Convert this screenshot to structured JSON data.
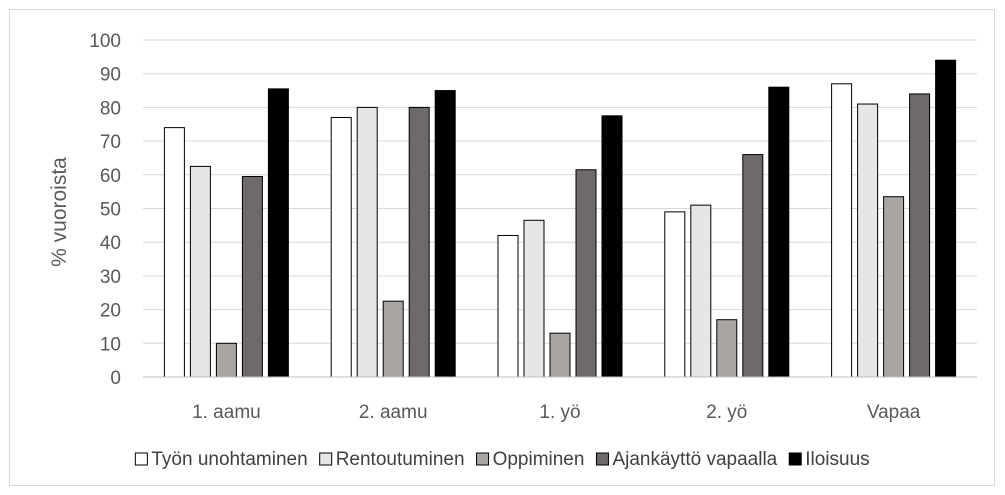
{
  "chart_data": {
    "type": "bar",
    "title": "",
    "xlabel": "",
    "ylabel": "% vuoroista",
    "ylim": [
      0,
      100
    ],
    "yticks": [
      0,
      10,
      20,
      30,
      40,
      50,
      60,
      70,
      80,
      90,
      100
    ],
    "grid": true,
    "legend_position": "bottom",
    "categories": [
      "1. aamu",
      "2. aamu",
      "1. yö",
      "2. yö",
      "Vapaa"
    ],
    "series": [
      {
        "name": "Työn unohtaminen",
        "color": "#ffffff",
        "values": [
          74,
          77,
          42,
          49,
          87
        ]
      },
      {
        "name": "Rentoutuminen",
        "color": "#e6e6e6",
        "values": [
          62.5,
          80,
          46.5,
          51,
          81
        ]
      },
      {
        "name": "Oppiminen",
        "color": "#aaa6a4",
        "values": [
          10,
          22.5,
          13,
          17,
          53.5
        ]
      },
      {
        "name": "Ajankäyttö vapaalla",
        "color": "#6e6a69",
        "values": [
          59.5,
          80,
          61.5,
          66,
          84
        ]
      },
      {
        "name": "Iloisuus",
        "color": "#000000",
        "values": [
          85.5,
          85,
          77.5,
          86,
          94
        ]
      }
    ]
  }
}
